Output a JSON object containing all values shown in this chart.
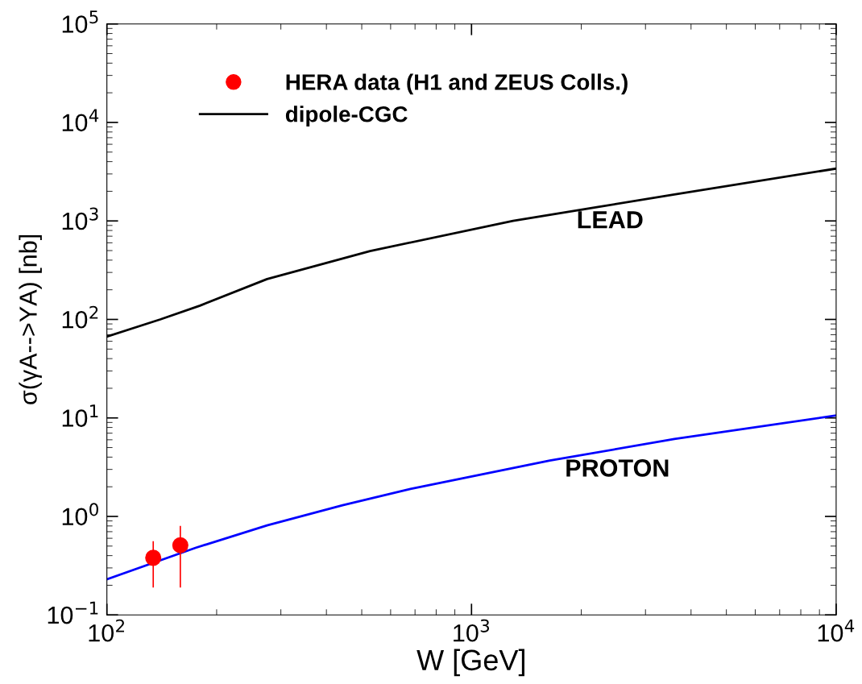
{
  "chart_data": {
    "type": "line",
    "xlabel": "W [GeV]",
    "ylabel": "σ(γA-->ΥA) [nb]",
    "log": "xy",
    "xlim": [
      100,
      10000
    ],
    "xticks": [
      {
        "value": 100,
        "label": "10$^{2}$"
      },
      {
        "value": 1000,
        "label": "10$^{3}$"
      },
      {
        "value": 10000,
        "label": "10$^{4}$"
      }
    ],
    "ylim": [
      0.1,
      100000
    ],
    "yticks": [
      {
        "value": 0.1,
        "label": "10$^{−1}$"
      },
      {
        "value": 1,
        "label": "10$^{0}$"
      },
      {
        "value": 10,
        "label": "10$^{1}$"
      },
      {
        "value": 100,
        "label": "10$^{2}$"
      },
      {
        "value": 1000,
        "label": "10$^{3}$"
      },
      {
        "value": 10000,
        "label": "10$^{4}$"
      },
      {
        "value": 100000,
        "label": "10$^{5}$"
      }
    ],
    "grid": false,
    "legend": "top left",
    "series": [
      {
        "name": "HERA data (H1 and ZEUS Colls.)",
        "type": "scatter",
        "marker": "circle",
        "color": "#ff0000",
        "x": [
          134,
          159
        ],
        "values": [
          0.38,
          0.51
        ],
        "errors": [
          [
            0.19,
            0.56
          ],
          [
            0.19,
            0.8
          ]
        ]
      },
      {
        "name": "dipole-CGC",
        "color": "#000000",
        "x": [
          100,
          140,
          180,
          275,
          527,
          1300,
          3600,
          10000
        ],
        "values": [
          67,
          100,
          138,
          257,
          495,
          1000,
          1860,
          3400
        ]
      },
      {
        "color": "#0000ff",
        "x": [
          100,
          175,
          275,
          443,
          680,
          1640,
          3600,
          10000
        ],
        "values": [
          0.23,
          0.48,
          0.81,
          1.3,
          1.9,
          3.7,
          6.1,
          10.6
        ]
      }
    ],
    "annotations": [
      "LEAD",
      "PROTON"
    ]
  }
}
